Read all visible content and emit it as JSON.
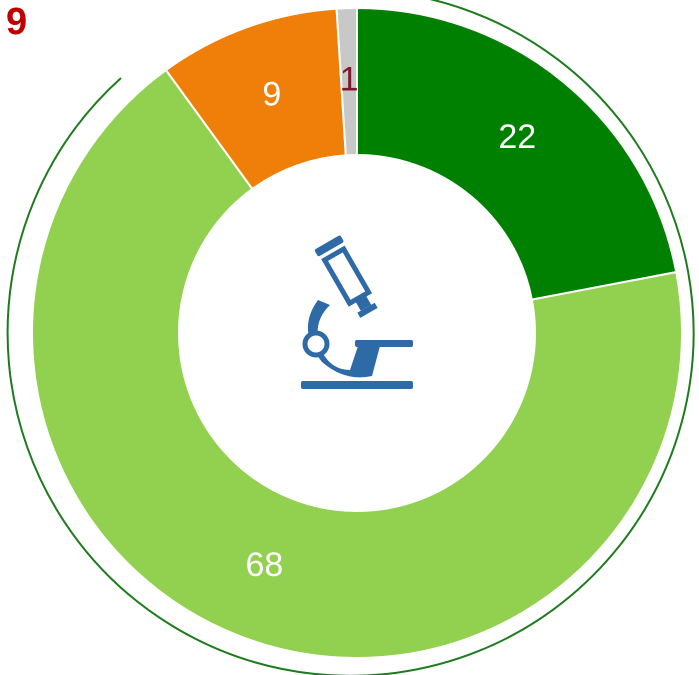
{
  "chart_data": {
    "type": "donut",
    "title": "9",
    "categories": [
      null,
      null,
      null,
      null
    ],
    "values": [
      22,
      68,
      9,
      1
    ],
    "colors": [
      "#008000",
      "#92d050",
      "#f07f09",
      "#c8c8c8"
    ],
    "label_colors": [
      "#ffffff",
      "#ffffff",
      "#ffffff",
      "#7b1a2a"
    ]
  }
}
